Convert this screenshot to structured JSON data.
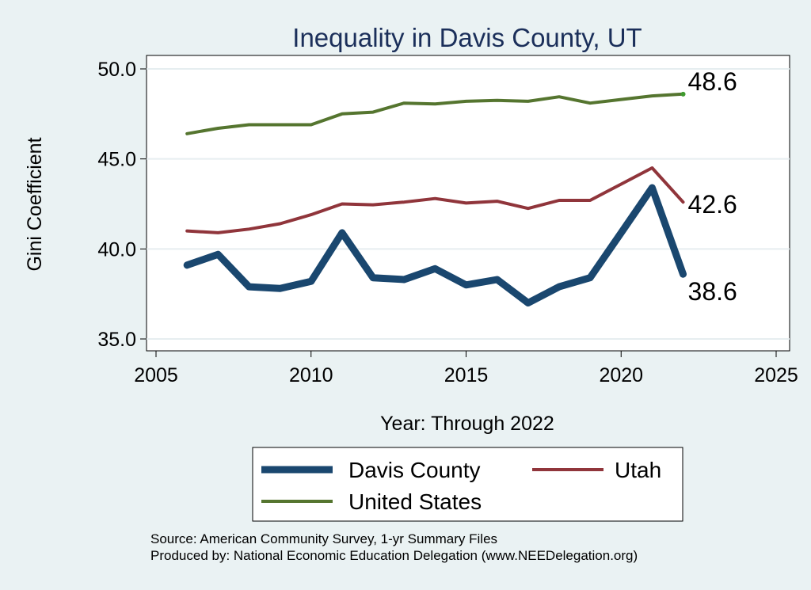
{
  "chart_data": {
    "type": "line",
    "title": "Inequality in Davis County, UT",
    "xlabel": "Year: Through 2022",
    "ylabel": "Gini Coefficient",
    "xlim": [
      2005,
      2025
    ],
    "ylim": [
      35,
      50
    ],
    "x_ticks": [
      "2005",
      "2010",
      "2015",
      "2020",
      "2025"
    ],
    "y_ticks": [
      "35.0",
      "40.0",
      "45.0",
      "50.0"
    ],
    "grid": true,
    "x": [
      2006,
      2007,
      2008,
      2009,
      2010,
      2011,
      2012,
      2013,
      2014,
      2015,
      2016,
      2017,
      2018,
      2019,
      2020,
      2021,
      2022
    ],
    "series": [
      {
        "name": "Davis County",
        "color": "#1a476f",
        "values": [
          39.1,
          39.7,
          37.9,
          37.8,
          38.2,
          40.9,
          38.4,
          38.3,
          38.9,
          38.0,
          38.3,
          37.0,
          37.9,
          38.4,
          40.9,
          43.4,
          38.6
        ],
        "end_label": "38.6"
      },
      {
        "name": "Utah",
        "color": "#90353b",
        "values": [
          41.0,
          40.9,
          41.1,
          41.4,
          41.9,
          42.5,
          42.45,
          42.6,
          42.8,
          42.55,
          42.65,
          42.25,
          42.7,
          42.7,
          43.6,
          44.5,
          42.6
        ],
        "end_label": "42.6"
      },
      {
        "name": "United States",
        "color": "#55752f",
        "values": [
          46.4,
          46.7,
          46.9,
          46.9,
          46.9,
          47.5,
          47.6,
          48.1,
          48.05,
          48.2,
          48.25,
          48.2,
          48.45,
          48.1,
          48.3,
          48.5,
          48.6
        ],
        "end_label": "48.6"
      }
    ],
    "legend": {
      "position": "bottom",
      "items": [
        "Davis County",
        "Utah",
        "United States"
      ]
    },
    "notes": [
      "Source: American Community Survey, 1-yr Summary Files",
      "Produced by: National Economic Education Delegation (www.NEEDelegation.org)"
    ]
  }
}
